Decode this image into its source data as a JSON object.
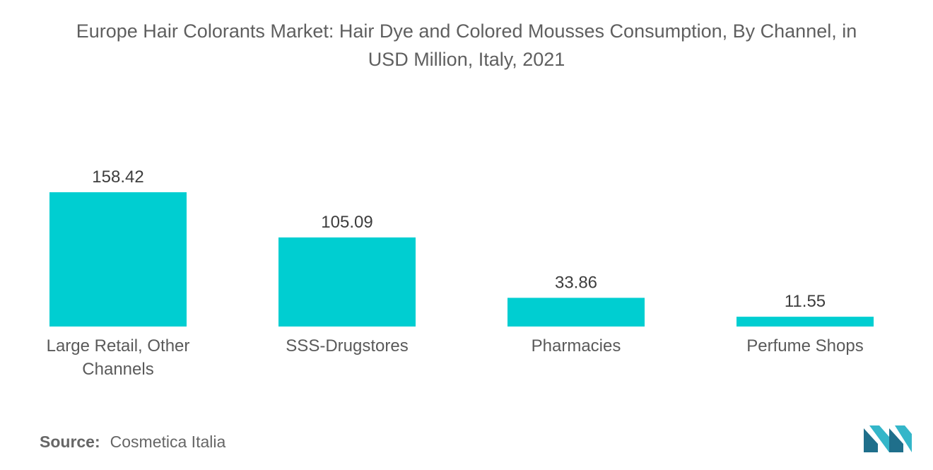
{
  "chart_data": {
    "type": "bar",
    "title_line1": "Europe Hair Colorants Market: Hair Dye and Colored Mousses Consumption, By Channel, in",
    "title_line2": "USD Million, Italy, 2021",
    "categories": [
      "Large Retail, Other Channels",
      "SSS-Drugstores",
      "Pharmacies",
      "Perfume Shops"
    ],
    "category_lines": [
      [
        "Large Retail, Other",
        "Channels"
      ],
      [
        "SSS-Drugstores"
      ],
      [
        "Pharmacies"
      ],
      [
        "Perfume Shops"
      ]
    ],
    "values": [
      158.42,
      105.09,
      33.86,
      11.55
    ],
    "value_labels": [
      "158.42",
      "105.09",
      "33.86",
      "11.55"
    ],
    "xlabel": "",
    "ylabel": "",
    "ylim": [
      0,
      158.42
    ],
    "grid": false,
    "legend": "none",
    "bar_color": "#00CED1"
  },
  "source": {
    "label": "Source:",
    "text": "Cosmetica Italia"
  },
  "logo": {
    "icon": "mordor-intelligence-logo-icon",
    "colors": [
      "#1f6f8b",
      "#34b6c9"
    ]
  }
}
